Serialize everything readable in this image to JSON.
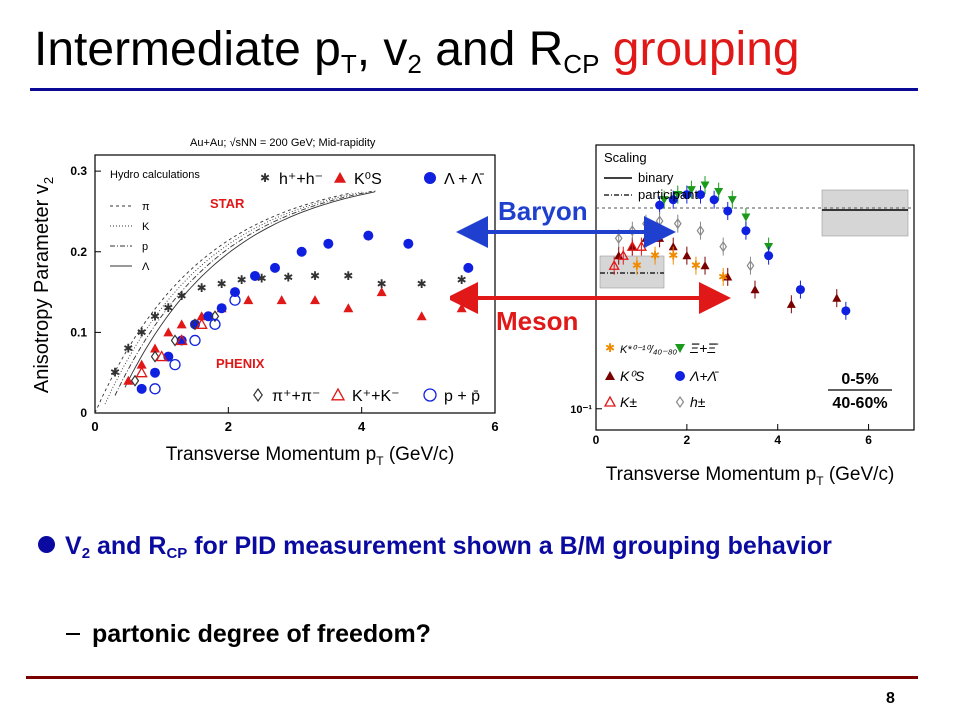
{
  "slide": {
    "title_main": "Intermediate p",
    "title_sub_t": "T",
    "title_mid": ", v",
    "title_sub_2": "2",
    "title_and": " and R",
    "title_sub_cp": "CP",
    "title_accent": "grouping",
    "bullet_v": "V",
    "bullet_v_sub": "2",
    "bullet_and": " and R",
    "bullet_r_sub": "CP",
    "bullet_rest": " for PID measurement shown a B/M grouping behavior",
    "sub_bullet": "partonic degree of freedom?",
    "page_number": "8",
    "colors": {
      "title": "#000000",
      "accent": "#e01818",
      "bullet": "#0a0aa0",
      "rule_top": "#0a0a96",
      "rule_bottom": "#7a0000",
      "baryon": "#1f3fcf",
      "meson": "#e01818"
    }
  },
  "chart_data": [
    {
      "type": "scatter",
      "header": "Au+Au; √sNN = 200 GeV; Mid-rapidity",
      "ylabel": "Anisotropy Parameter v",
      "ylabel_sub": "2",
      "xlabel": "Transverse Momentum p",
      "xlabel_sub": "T",
      "xlabel_unit": " (GeV/c)",
      "xlim": [
        0,
        6
      ],
      "ylim": [
        0,
        0.32
      ],
      "x_ticks": [
        "0",
        "2",
        "4",
        "6"
      ],
      "y_ticks": [
        "0",
        "0.1",
        "0.2",
        "0.3"
      ],
      "labels": {
        "star": "STAR",
        "phenix": "PHENIX"
      },
      "hydro_legend": {
        "title": "Hydro calculations",
        "entries": [
          "π",
          "K",
          "p",
          "Λ"
        ]
      },
      "legend_top": [
        "h⁺+h⁻",
        "K⁰S",
        "Λ + Λ̄"
      ],
      "legend_bottom": [
        "π⁺+π⁻",
        "K⁺+K⁻",
        "p + p̄"
      ],
      "series": [
        {
          "name": "h⁺+h⁻",
          "marker": "star",
          "color": "#333333",
          "x": [
            0.3,
            0.5,
            0.7,
            0.9,
            1.1,
            1.3,
            1.6,
            1.9,
            2.2,
            2.5,
            2.9,
            3.3,
            3.8,
            4.3,
            4.9,
            5.5
          ],
          "y": [
            0.05,
            0.08,
            0.1,
            0.12,
            0.13,
            0.145,
            0.155,
            0.16,
            0.165,
            0.167,
            0.168,
            0.17,
            0.17,
            0.16,
            0.16,
            0.165
          ]
        },
        {
          "name": "K⁰S",
          "marker": "triangle",
          "color": "#e01818",
          "x": [
            0.5,
            0.7,
            0.9,
            1.1,
            1.3,
            1.6,
            1.9,
            2.3,
            2.8,
            3.3,
            3.8,
            4.3,
            4.9,
            5.5
          ],
          "y": [
            0.04,
            0.06,
            0.08,
            0.1,
            0.11,
            0.12,
            0.13,
            0.14,
            0.14,
            0.14,
            0.13,
            0.15,
            0.12,
            0.13
          ]
        },
        {
          "name": "Λ + Λ̄",
          "marker": "circle",
          "color": "#1020e0",
          "x": [
            0.7,
            0.9,
            1.1,
            1.3,
            1.5,
            1.7,
            1.9,
            2.1,
            2.4,
            2.7,
            3.1,
            3.5,
            4.1,
            4.7,
            5.6
          ],
          "y": [
            0.03,
            0.05,
            0.07,
            0.09,
            0.11,
            0.12,
            0.13,
            0.15,
            0.17,
            0.18,
            0.2,
            0.21,
            0.22,
            0.21,
            0.18
          ]
        }
      ]
    },
    {
      "type": "scatter",
      "ylabel": "R",
      "ylabel_sub": "CP",
      "xlabel": "Transverse Momentum p",
      "xlabel_sub": "T",
      "xlabel_unit": " (GeV/c)",
      "xlim": [
        0,
        7
      ],
      "y_scale": "log",
      "x_ticks": [
        "0",
        "2",
        "4",
        "6"
      ],
      "y_ticks": [
        "10⁻¹"
      ],
      "scaling_legend": {
        "title": "Scaling",
        "entries": [
          "binary",
          "participant"
        ]
      },
      "legend": [
        "K*⁰⁻¹⁰/₄₀₋₈₀",
        "Ξ+Ξ̄",
        "K⁰S",
        "Λ+Λ̄",
        "K±",
        "h±"
      ],
      "centrality": {
        "numerator": "0-5%",
        "denominator": "40-60%"
      },
      "series": [
        {
          "name": "Ξ+Ξ̄",
          "marker": "triangle-down",
          "color": "#1a9a1a",
          "x": [
            1.5,
            1.8,
            2.1,
            2.4,
            2.7,
            3.0,
            3.3,
            3.8
          ],
          "y": [
            0.9,
            0.95,
            1.0,
            1.05,
            0.98,
            0.9,
            0.75,
            0.55
          ]
        },
        {
          "name": "Λ+Λ̄",
          "marker": "circle",
          "color": "#1020e0",
          "x": [
            1.4,
            1.7,
            2.0,
            2.3,
            2.6,
            2.9,
            3.3,
            3.8,
            4.5,
            5.5
          ],
          "y": [
            0.85,
            0.9,
            0.95,
            0.95,
            0.9,
            0.8,
            0.65,
            0.5,
            0.35,
            0.28
          ]
        },
        {
          "name": "K⁰S",
          "marker": "triangle",
          "color": "#7a0000",
          "x": [
            0.5,
            0.8,
            1.1,
            1.4,
            1.7,
            2.0,
            2.4,
            2.9,
            3.5,
            4.3,
            5.3
          ],
          "y": [
            0.5,
            0.55,
            0.6,
            0.6,
            0.55,
            0.5,
            0.45,
            0.4,
            0.35,
            0.3,
            0.32
          ]
        },
        {
          "name": "K±",
          "marker": "triangle-open",
          "color": "#e01818",
          "x": [
            0.4,
            0.6,
            0.8,
            1.0
          ],
          "y": [
            0.45,
            0.5,
            0.55,
            0.55
          ]
        },
        {
          "name": "K*",
          "marker": "star",
          "color": "#f08a00",
          "x": [
            0.9,
            1.3,
            1.7,
            2.2,
            2.8
          ],
          "y": [
            0.45,
            0.5,
            0.5,
            0.45,
            0.4
          ]
        },
        {
          "name": "h±",
          "marker": "diamond-open",
          "color": "#888888",
          "x": [
            0.5,
            0.8,
            1.1,
            1.4,
            1.8,
            2.3,
            2.8,
            3.4
          ],
          "y": [
            0.6,
            0.65,
            0.7,
            0.72,
            0.7,
            0.65,
            0.55,
            0.45
          ]
        }
      ]
    }
  ],
  "annotations": {
    "baryon": "Baryon",
    "meson": "Meson"
  }
}
